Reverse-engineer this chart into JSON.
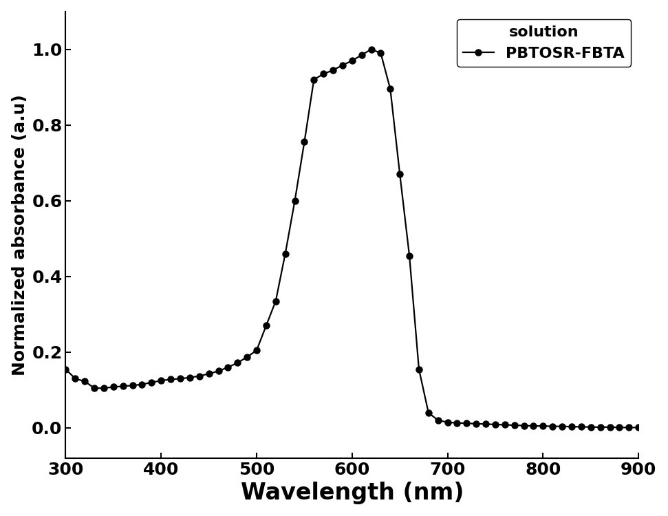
{
  "x": [
    300,
    310,
    320,
    330,
    340,
    350,
    360,
    370,
    380,
    390,
    400,
    410,
    420,
    430,
    440,
    450,
    460,
    470,
    480,
    490,
    500,
    510,
    520,
    530,
    540,
    550,
    560,
    570,
    580,
    590,
    600,
    610,
    620,
    630,
    640,
    650,
    660,
    670,
    680,
    690,
    700,
    710,
    720,
    730,
    740,
    750,
    760,
    770,
    780,
    790,
    800,
    810,
    820,
    830,
    840,
    850,
    860,
    870,
    880,
    890,
    900
  ],
  "y": [
    0.155,
    0.13,
    0.123,
    0.105,
    0.105,
    0.108,
    0.11,
    0.112,
    0.115,
    0.12,
    0.125,
    0.128,
    0.13,
    0.133,
    0.137,
    0.143,
    0.15,
    0.16,
    0.172,
    0.187,
    0.205,
    0.27,
    0.335,
    0.46,
    0.6,
    0.755,
    0.92,
    0.935,
    0.945,
    0.958,
    0.97,
    0.985,
    1.0,
    0.99,
    0.895,
    0.67,
    0.455,
    0.155,
    0.04,
    0.02,
    0.015,
    0.013,
    0.012,
    0.011,
    0.01,
    0.009,
    0.008,
    0.007,
    0.006,
    0.005,
    0.005,
    0.004,
    0.004,
    0.003,
    0.003,
    0.002,
    0.002,
    0.002,
    0.001,
    0.001,
    0.001
  ],
  "line_color": "#000000",
  "marker": "o",
  "markersize": 6.5,
  "linewidth": 1.6,
  "markerfacecolor": "#000000",
  "markeredgecolor": "#000000",
  "xlabel": "Wavelength (nm)",
  "ylabel": "Normalized absorbance (a.u)",
  "xlim": [
    300,
    900
  ],
  "ylim": [
    -0.08,
    1.1
  ],
  "xticks": [
    300,
    400,
    500,
    600,
    700,
    800,
    900
  ],
  "yticks": [
    0.0,
    0.2,
    0.4,
    0.6,
    0.8,
    1.0
  ],
  "legend_title": "solution",
  "legend_label": "PBTOSR-FBTA",
  "xlabel_fontsize": 24,
  "ylabel_fontsize": 18,
  "tick_fontsize": 18,
  "legend_fontsize": 16,
  "legend_title_fontsize": 16,
  "background_color": "#ffffff",
  "spine_color": "#000000"
}
